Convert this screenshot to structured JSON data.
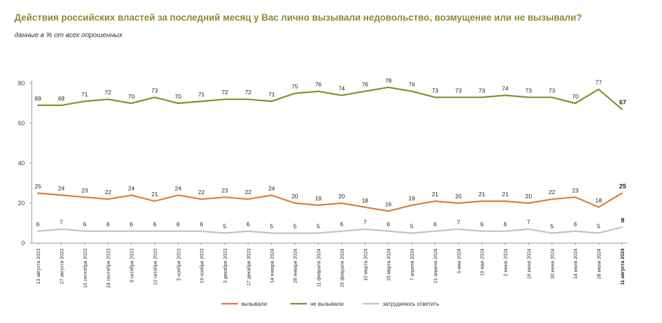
{
  "header": {
    "title": "Действия российских властей за последний месяц у Вас лично вызывали недовольство, возмущение или не вызывали?",
    "subtitle": "данные в % от всех опрошенных"
  },
  "chart_data": {
    "type": "line",
    "ylim": [
      0,
      80
    ],
    "yticks": [
      0,
      20,
      40,
      60,
      80
    ],
    "grid": false,
    "legend_position": "bottom-center",
    "categories": [
      "13 августа 2023",
      "27 августа 2023",
      "10 сентября 2023",
      "24 сентября 2023",
      "8 октября 2023",
      "22 октября 2023",
      "5 ноября 2023",
      "19 ноября 2023",
      "3 декабря 2023",
      "17 декабря 2023",
      "14 января 2024",
      "28 января 2024",
      "11 февраля 2024",
      "25 февраля 2024",
      "10 марта 2024",
      "25 марта 2024",
      "7 апреля 2024",
      "21 апреля 2024",
      "5 мая 2024",
      "19 мая 2024",
      "2 июня 2024",
      "16 июня 2024",
      "30 июня 2024",
      "14 июля 2024",
      "28 июля 2024",
      "11 августа 2024"
    ],
    "series": [
      {
        "name": "вызывали",
        "color": "#e07b39",
        "values": [
          25,
          24,
          23,
          22,
          24,
          21,
          24,
          22,
          23,
          22,
          24,
          20,
          19,
          20,
          18,
          16,
          19,
          21,
          20,
          21,
          21,
          20,
          22,
          23,
          18,
          25
        ]
      },
      {
        "name": "не вызывали",
        "color": "#8f8a2c",
        "values": [
          69,
          69,
          71,
          72,
          70,
          73,
          70,
          71,
          72,
          72,
          71,
          75,
          76,
          74,
          76,
          78,
          76,
          73,
          73,
          73,
          74,
          73,
          73,
          70,
          77,
          67
        ]
      },
      {
        "name": "затрудняюсь ответить",
        "color": "#c3c3c3",
        "values": [
          6,
          7,
          6,
          6,
          6,
          6,
          6,
          6,
          5,
          6,
          5,
          5,
          5,
          6,
          7,
          6,
          5,
          6,
          7,
          6,
          6,
          7,
          5,
          6,
          5,
          8
        ]
      }
    ]
  }
}
